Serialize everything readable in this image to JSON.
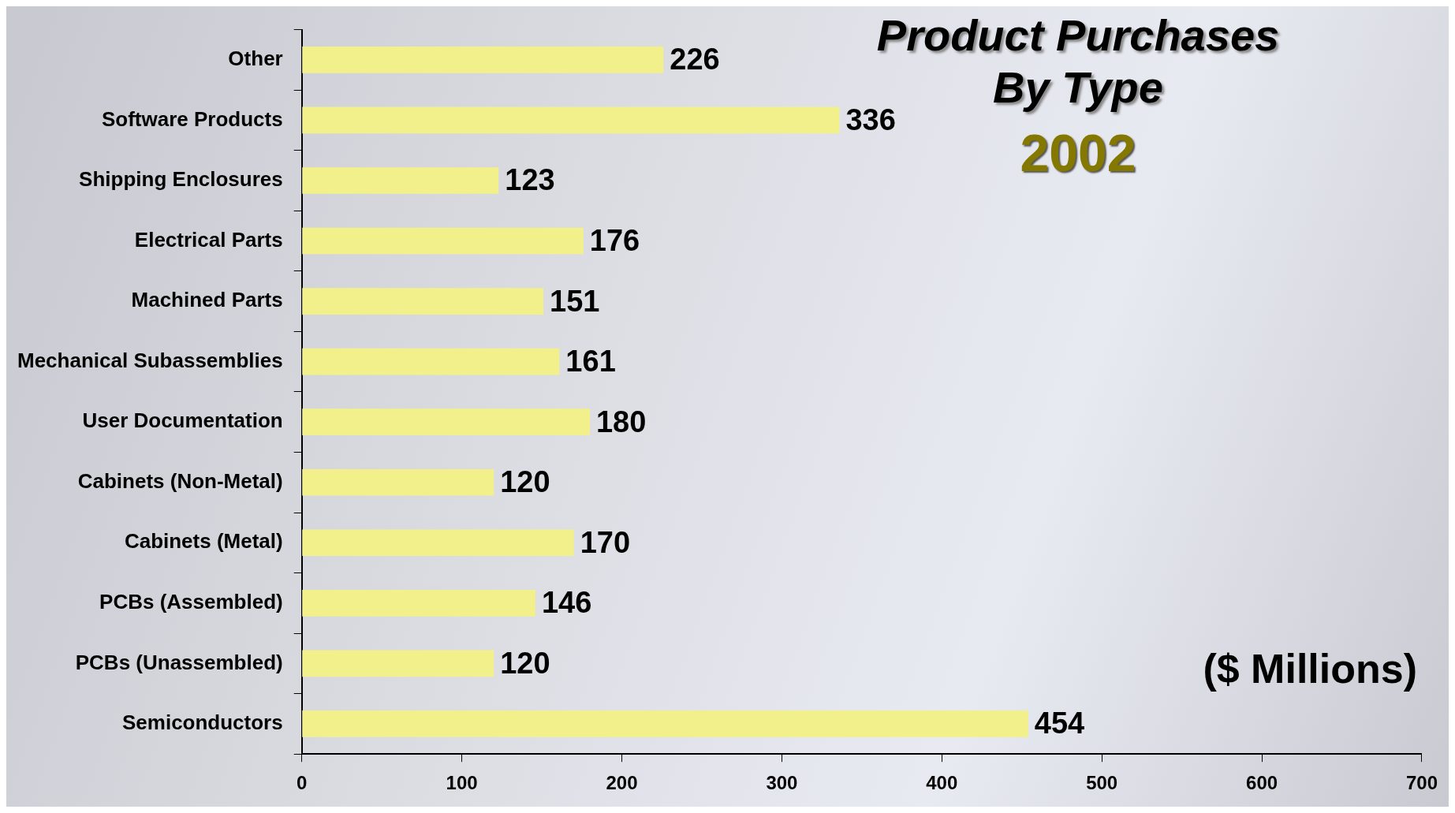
{
  "chart_data": {
    "type": "bar",
    "orientation": "horizontal",
    "title": "Product Purchases By Type",
    "subtitle": "2002",
    "annotations": [
      "($ Millions)"
    ],
    "categories": [
      "Other",
      "Software Products",
      "Shipping Enclosures",
      "Electrical Parts",
      "Machined Parts",
      "Mechanical Subassemblies",
      "User Documentation",
      "Cabinets (Non-Metal)",
      "Cabinets (Metal)",
      "PCBs (Assembled)",
      "PCBs (Unassembled)",
      "Semiconductors"
    ],
    "values": [
      226,
      336,
      123,
      176,
      151,
      161,
      180,
      120,
      170,
      146,
      120,
      454
    ],
    "color": "#f2f08a",
    "data_labels": true,
    "grid": false,
    "legend": false,
    "xlim": [
      0,
      700
    ],
    "xticks": [
      0,
      100,
      200,
      300,
      400,
      500,
      600,
      700
    ]
  }
}
